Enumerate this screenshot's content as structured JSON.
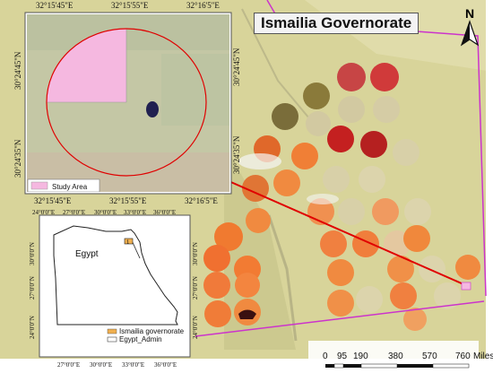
{
  "title": "Ismailia Governorate",
  "north_arrow": {
    "label": "N"
  },
  "inset": {
    "coords_top": [
      "32°15'45\"E",
      "32°15'55\"E",
      "32°16'5\"E"
    ],
    "coords_bottom": [
      "32°15'45\"E",
      "32°15'55\"E",
      "32°16'5\"E"
    ],
    "coords_left": [
      "30°24'45\"N",
      "30°24'35\"N"
    ],
    "coords_right": [
      "30°24'45\"N",
      "30°24'35\"N"
    ],
    "legend_label": "Study Area"
  },
  "locator": {
    "coords_top": [
      "24°0'0\"E",
      "27°0'0\"E",
      "30°0'0\"E",
      "33°0'0\"E",
      "36°0'0\"E"
    ],
    "coords_bottom": [
      "27°0'0\"E",
      "30°0'0\"E",
      "33°0'0\"E",
      "36°0'0\"E"
    ],
    "coords_left": [
      "30°0'0\"N",
      "27°0'0\"N",
      "24°0'0\"N"
    ],
    "coords_right": [
      "30°0'0\"N",
      "27°0'0\"N",
      "24°0'0\"N"
    ],
    "country_label": "Egypt",
    "legend": [
      "Ismailia governorate",
      "Egypt_Admin"
    ]
  },
  "scalebar": {
    "ticks": [
      "0",
      "95",
      "190",
      "380",
      "570",
      "760"
    ],
    "unit": "Miles"
  },
  "colors": {
    "boundary": "#cc33cc",
    "leader_line": "#e00000",
    "study_area_fill": "#f5b8e0",
    "ismailia_fill": "#f0b050"
  }
}
